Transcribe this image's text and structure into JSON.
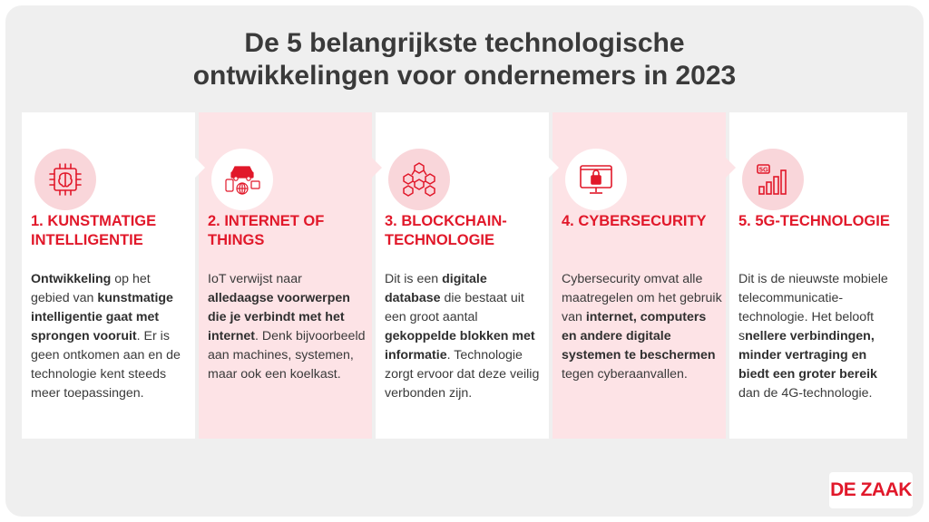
{
  "title": {
    "line1": "De 5 belangrijkste technologische",
    "line2": "ontwikkelingen voor ondernemers in 2023"
  },
  "cards": [
    {
      "icon": "brain-chip-icon",
      "heading": "1. KUNSTMATIGE INTELLIGENTIE",
      "body": [
        {
          "t": "Ontwikkeling",
          "b": true
        },
        {
          "t": " op het gebied van ",
          "b": false
        },
        {
          "t": "kunstmatige intelligentie gaat met sprongen vooruit",
          "b": true
        },
        {
          "t": ". Er is geen ontkomen aan en de technologie kent steeds meer toepassingen.",
          "b": false
        }
      ]
    },
    {
      "icon": "connected-devices-icon",
      "heading": "2. INTERNET OF THINGS",
      "body": [
        {
          "t": "IoT verwijst naar ",
          "b": false
        },
        {
          "t": "alledaagse voorwerpen die je verbindt met het internet",
          "b": true
        },
        {
          "t": ". Denk bijvoorbeeld aan machines, systemen, maar ook een koelkast.",
          "b": false
        }
      ]
    },
    {
      "icon": "blockchain-cubes-icon",
      "heading": "3. BLOCKCHAIN-TECHNOLOGIE",
      "body": [
        {
          "t": "Dit is een ",
          "b": false
        },
        {
          "t": "digitale database",
          "b": true
        },
        {
          "t": " die bestaat uit een groot aantal ",
          "b": false
        },
        {
          "t": "gekoppelde blokken met informatie",
          "b": true
        },
        {
          "t": ". Technologie zorgt ervoor dat deze veilig verbonden zijn.",
          "b": false
        }
      ]
    },
    {
      "icon": "monitor-lock-icon",
      "heading": "4. CYBERSECURITY",
      "body": [
        {
          "t": "Cybersecurity omvat alle maatregelen om het gebruik van ",
          "b": false
        },
        {
          "t": "internet, computers en andere digitale systemen te beschermen",
          "b": true
        },
        {
          "t": " tegen cyberaanvallen.",
          "b": false
        }
      ]
    },
    {
      "icon": "5g-signal-icon",
      "heading": "5. 5G-TECHNOLOGIE",
      "body": [
        {
          "t": "Dit is de nieuwste mobiele telecommunicatie-technologie. Het belooft s",
          "b": false
        },
        {
          "t": "nellere verbindingen, minder vertraging en biedt een groter bereik",
          "b": true
        },
        {
          "t": " dan de 4G-technologie.",
          "b": false
        }
      ]
    }
  ],
  "icon_label_5g": "5G",
  "logo": "DE ZAAK",
  "colors": {
    "accent": "#e1182a",
    "card_pink": "#fde3e6",
    "background": "#efefef",
    "text": "#3a3a3a"
  }
}
